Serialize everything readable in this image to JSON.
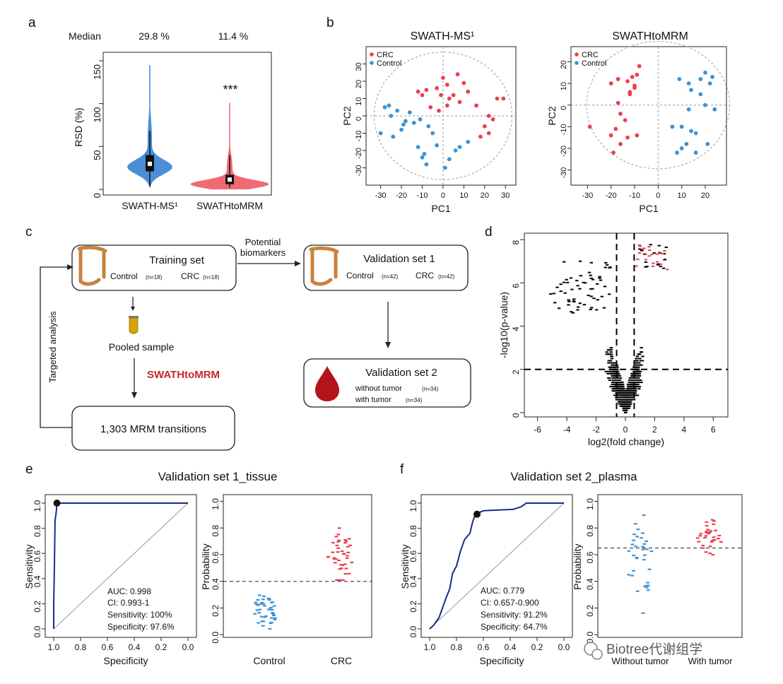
{
  "panel_labels": {
    "a": "a",
    "b": "b",
    "c": "c",
    "d": "d",
    "e": "e",
    "f": "f"
  },
  "watermark": "Biotree代谢组学",
  "panel_a": {
    "median_label": "Median",
    "medians": [
      "29.8 %",
      "11.4 %"
    ],
    "significance": "***",
    "categories": [
      "SWATH-MS¹",
      "SWATHtoMRM"
    ]
  },
  "panel_b": {
    "titles": [
      "SWATH-MS¹",
      "SWATHtoMRM"
    ],
    "legend": [
      "CRC",
      "Control"
    ]
  },
  "panel_c": {
    "training_title": "Training set",
    "training_groups": [
      "Control",
      "(n=18)",
      "CRC",
      "(n=18)"
    ],
    "potential_label": "Potential",
    "biomarkers_label": "biomarkers",
    "pooled_sample": "Pooled sample",
    "swathtomrm": "SWATHtoMRM",
    "transitions": "1,303 MRM transitions",
    "targeted": "Targeted analysis",
    "val1_title": "Validation set 1",
    "val1_groups": [
      "Control",
      "(n=42)",
      "CRC",
      "(n=42)"
    ],
    "val2_title": "Validation set 2",
    "val2_lines": [
      [
        "without tumor",
        "(n=34)"
      ],
      [
        "with tumor",
        "(n=34)"
      ]
    ]
  },
  "panel_e": {
    "title": "Validation set 1_tissue",
    "stats": [
      "AUC: 0.998",
      "CI: 0.993-1",
      "Sensitivity: 100%",
      "Specificity: 97.6%"
    ],
    "strip_categories": [
      "Control",
      "CRC"
    ]
  },
  "panel_f": {
    "title": "Validation set 2_plasma",
    "stats": [
      "AUC: 0.779",
      "CI: 0.657-0.900",
      "Sensitivity: 91.2%",
      "Specificity: 64.7%"
    ]
  },
  "colors": {
    "red": "#e8424f",
    "blue": "#3b93d4",
    "violin_blue": "#4a8fd6",
    "violin_red": "#f06a74",
    "navy": "#1a2a8c"
  },
  "chart_data": [
    {
      "id": "a",
      "type": "violin",
      "ylabel": "RSD (%)",
      "ylim": [
        0,
        150
      ],
      "yticks": [
        0,
        50,
        100,
        150
      ],
      "categories": [
        "SWATH-MS¹",
        "SWATHtoMRM"
      ],
      "medians": [
        29.8,
        11.4
      ],
      "quartiles": [
        [
          21,
          40
        ],
        [
          6,
          17
        ]
      ],
      "range": [
        [
          2,
          145
        ],
        [
          0,
          101
        ]
      ]
    },
    {
      "id": "b1",
      "type": "scatter",
      "title": "SWATH-MS¹",
      "xlabel": "PC1",
      "ylabel": "PC2",
      "xlim": [
        -37,
        35
      ],
      "ylim": [
        -40,
        40
      ],
      "xticks": [
        -30,
        -20,
        -10,
        0,
        10,
        20,
        30
      ],
      "yticks": [
        -30,
        -20,
        -10,
        0,
        10,
        20,
        30
      ],
      "ytick_labels": [
        "-30",
        "-20",
        "-10",
        "0",
        "10",
        "20",
        "30"
      ],
      "series": [
        {
          "name": "CRC",
          "points": [
            [
              -12,
              14
            ],
            [
              -8,
              15
            ],
            [
              -3,
              16
            ],
            [
              0,
              22
            ],
            [
              2,
              18
            ],
            [
              7,
              24
            ],
            [
              10,
              19
            ],
            [
              -1,
              12
            ],
            [
              3,
              10
            ],
            [
              5,
              12
            ],
            [
              8,
              8
            ],
            [
              12,
              14
            ],
            [
              16,
              6
            ],
            [
              22,
              0
            ],
            [
              -6,
              5
            ],
            [
              -2,
              3
            ],
            [
              26,
              10
            ],
            [
              24,
              -2
            ],
            [
              20,
              -6
            ],
            [
              22,
              -10
            ],
            [
              18,
              -12
            ],
            [
              29,
              10
            ],
            [
              -10,
              12
            ],
            [
              2,
              6
            ]
          ]
        },
        {
          "name": "Control",
          "points": [
            [
              -28,
              5
            ],
            [
              -25,
              0
            ],
            [
              -22,
              3
            ],
            [
              -19,
              -5
            ],
            [
              -16,
              2
            ],
            [
              -14,
              -4
            ],
            [
              -11,
              -2
            ],
            [
              -7,
              -6
            ],
            [
              -30,
              -10
            ],
            [
              -24,
              -12
            ],
            [
              -12,
              -18
            ],
            [
              -10,
              -24
            ],
            [
              -9,
              -22
            ],
            [
              -3,
              -17
            ],
            [
              3,
              -25
            ],
            [
              6,
              -20
            ],
            [
              12,
              -15
            ],
            [
              -20,
              -8
            ],
            [
              -18,
              -3
            ],
            [
              -5,
              -10
            ],
            [
              8,
              -18
            ],
            [
              -26,
              6
            ],
            [
              1,
              -30
            ],
            [
              -8,
              -28
            ]
          ]
        }
      ]
    },
    {
      "id": "b2",
      "type": "scatter",
      "title": "SWATHtoMRM",
      "xlabel": "PC1",
      "ylabel": "PC2",
      "xlim": [
        -37,
        29
      ],
      "ylim": [
        -37,
        27
      ],
      "xticks": [
        -30,
        -20,
        -10,
        0,
        10,
        20
      ],
      "yticks": [
        -30,
        -20,
        -10,
        0,
        10,
        20
      ],
      "ytick_labels": [
        "-30",
        "-20",
        "-10",
        "0",
        "10",
        "20"
      ],
      "series": [
        {
          "name": "CRC",
          "points": [
            [
              -20,
              10
            ],
            [
              -17,
              12
            ],
            [
              -13,
              11
            ],
            [
              -11,
              13
            ],
            [
              -10,
              9
            ],
            [
              -9,
              14
            ],
            [
              -8,
              18
            ],
            [
              -12,
              5
            ],
            [
              -17,
              1
            ],
            [
              -16,
              -4
            ],
            [
              -14,
              -7
            ],
            [
              -18,
              -11
            ],
            [
              -20,
              -14
            ],
            [
              -13,
              -15
            ],
            [
              -29,
              -10
            ],
            [
              -9,
              -14
            ],
            [
              -16,
              -18
            ],
            [
              -19,
              -22
            ],
            [
              -10,
              8
            ],
            [
              -12,
              6
            ]
          ]
        },
        {
          "name": "Control",
          "points": [
            [
              9,
              12
            ],
            [
              13,
              10
            ],
            [
              18,
              12
            ],
            [
              20,
              15
            ],
            [
              22,
              10
            ],
            [
              18,
              5
            ],
            [
              20,
              0
            ],
            [
              24,
              -2
            ],
            [
              13,
              -2
            ],
            [
              10,
              -10
            ],
            [
              14,
              -12
            ],
            [
              16,
              -13
            ],
            [
              12,
              -18
            ],
            [
              10,
              -20
            ],
            [
              8,
              -22
            ],
            [
              16,
              -22
            ],
            [
              14,
              7
            ],
            [
              21,
              -18
            ],
            [
              6,
              -10
            ],
            [
              23,
              13
            ]
          ]
        }
      ]
    },
    {
      "id": "d",
      "type": "scatter",
      "subtype": "volcano",
      "xlabel": "log2(fold change)",
      "ylabel": "-log10(p-value)",
      "xlim": [
        -6.9,
        7.0
      ],
      "ylim": [
        -0.2,
        8.3
      ],
      "xticks": [
        -6,
        -4,
        -2,
        0,
        2,
        4,
        6
      ],
      "yticks": [
        0,
        2,
        4,
        6,
        8
      ],
      "thresholds": {
        "x": [
          -0.6,
          0.6
        ],
        "y": 2
      }
    },
    {
      "id": "e1",
      "type": "line",
      "subtype": "roc",
      "xlabel": "Specificity",
      "ylabel": "Sensitivity",
      "xlim": [
        1.0,
        0.0
      ],
      "ylim": [
        0.0,
        1.0
      ],
      "xticks": [
        1.0,
        0.8,
        0.6,
        0.4,
        0.2,
        0.0
      ],
      "yticks": [
        0.0,
        0.2,
        0.4,
        0.6,
        0.8,
        1.0
      ],
      "curve": [
        [
          1.0,
          0.0
        ],
        [
          1.0,
          0.2
        ],
        [
          0.995,
          0.5
        ],
        [
          0.99,
          0.86
        ],
        [
          0.985,
          0.9
        ],
        [
          0.98,
          0.94
        ],
        [
          0.976,
          1.0
        ],
        [
          0.0,
          1.0
        ]
      ],
      "marker": [
        0.976,
        1.0
      ]
    },
    {
      "id": "e2",
      "type": "scatter",
      "subtype": "strip",
      "ylabel": "Probability",
      "ylim": [
        -0.02,
        1.05
      ],
      "yticks": [
        0.0,
        0.2,
        0.4,
        0.6,
        0.8,
        1.0
      ],
      "cutoff": 0.4,
      "categories": [
        "Control",
        "CRC"
      ]
    },
    {
      "id": "f1",
      "type": "line",
      "subtype": "roc",
      "xlabel": "Specificity",
      "ylabel": "Sensitivity",
      "xlim": [
        1.0,
        0.0
      ],
      "ylim": [
        0.0,
        1.0
      ],
      "xticks": [
        1.0,
        0.8,
        0.6,
        0.4,
        0.2,
        0.0
      ],
      "yticks": [
        0.0,
        0.2,
        0.4,
        0.6,
        0.8,
        1.0
      ],
      "curve": [
        [
          1.0,
          0.0
        ],
        [
          0.97,
          0.03
        ],
        [
          0.93,
          0.09
        ],
        [
          0.91,
          0.15
        ],
        [
          0.88,
          0.24
        ],
        [
          0.85,
          0.32
        ],
        [
          0.83,
          0.44
        ],
        [
          0.8,
          0.5
        ],
        [
          0.77,
          0.62
        ],
        [
          0.74,
          0.71
        ],
        [
          0.7,
          0.76
        ],
        [
          0.68,
          0.85
        ],
        [
          0.66,
          0.91
        ],
        [
          0.6,
          0.94
        ],
        [
          0.38,
          0.95
        ],
        [
          0.32,
          0.97
        ],
        [
          0.28,
          1.0
        ],
        [
          0.0,
          1.0
        ]
      ],
      "marker": [
        0.647,
        0.912
      ]
    },
    {
      "id": "f2",
      "type": "scatter",
      "subtype": "strip",
      "ylabel": "Probability",
      "ylim": [
        -0.02,
        1.05
      ],
      "yticks": [
        0.0,
        0.2,
        0.4,
        0.6,
        0.8,
        1.0
      ],
      "cutoff": 0.65,
      "categories": [
        "Without tumor",
        "With tumor"
      ]
    }
  ]
}
